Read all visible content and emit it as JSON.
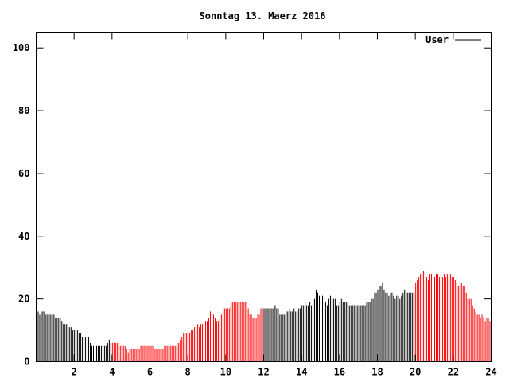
{
  "chart_data": {
    "type": "bar",
    "title": "Sonntag 13. Maerz 2016",
    "xlabel": "",
    "ylabel": "",
    "xlim": [
      0,
      24
    ],
    "ylim": [
      0,
      105
    ],
    "x_ticks": [
      2,
      4,
      6,
      8,
      10,
      12,
      14,
      16,
      18,
      20,
      22,
      24
    ],
    "y_ticks": [
      0,
      20,
      40,
      60,
      80,
      100
    ],
    "grid": false,
    "legend": {
      "position": "top-right",
      "entries": [
        {
          "name": "User",
          "color": "#000000"
        }
      ]
    },
    "samples_per_hour": 12,
    "segment_colors": [
      {
        "from": 0,
        "to": 4,
        "color": "#000000"
      },
      {
        "from": 4,
        "to": 12,
        "color": "#ff0000"
      },
      {
        "from": 12,
        "to": 20,
        "color": "#000000"
      },
      {
        "from": 20,
        "to": 24,
        "color": "#ff0000"
      }
    ],
    "series": [
      {
        "name": "User",
        "values": [
          16,
          16,
          15,
          16,
          16,
          16,
          15,
          15,
          15,
          15,
          15,
          15,
          14,
          14,
          14,
          14,
          13,
          12,
          12,
          12,
          11,
          11,
          11,
          10,
          10,
          10,
          10,
          9,
          9,
          8,
          8,
          8,
          8,
          8,
          6,
          5,
          5,
          5,
          5,
          5,
          5,
          5,
          5,
          5,
          5,
          6,
          7,
          6,
          6,
          6,
          6,
          6,
          6,
          5,
          5,
          5,
          5,
          4,
          3,
          4,
          4,
          4,
          4,
          4,
          4,
          4,
          5,
          5,
          5,
          5,
          5,
          5,
          5,
          5,
          5,
          4,
          4,
          4,
          4,
          4,
          4,
          5,
          5,
          5,
          5,
          5,
          5,
          5,
          5,
          6,
          6,
          7,
          8,
          9,
          9,
          9,
          9,
          9,
          10,
          10,
          11,
          11,
          12,
          11,
          12,
          12,
          13,
          13,
          13,
          14,
          16,
          16,
          15,
          14,
          13,
          13,
          14,
          15,
          16,
          17,
          17,
          17,
          17,
          18,
          19,
          19,
          19,
          19,
          19,
          19,
          19,
          19,
          19,
          19,
          17,
          15,
          15,
          14,
          14,
          14,
          15,
          15,
          17,
          17,
          17,
          17,
          17,
          17,
          17,
          17,
          17,
          18,
          17,
          17,
          15,
          15,
          15,
          15,
          16,
          16,
          17,
          16,
          16,
          17,
          16,
          16,
          17,
          17,
          18,
          18,
          19,
          18,
          18,
          19,
          18,
          20,
          20,
          23,
          22,
          21,
          21,
          21,
          21,
          19,
          18,
          20,
          21,
          21,
          20,
          20,
          18,
          18,
          19,
          20,
          19,
          19,
          19,
          19,
          18,
          18,
          18,
          18,
          18,
          18,
          18,
          18,
          18,
          18,
          18,
          19,
          19,
          19,
          20,
          20,
          22,
          22,
          23,
          24,
          24,
          25,
          23,
          22,
          22,
          21,
          22,
          22,
          21,
          20,
          21,
          21,
          20,
          21,
          22,
          23,
          22,
          22,
          22,
          22,
          22,
          22,
          25,
          26,
          27,
          28,
          29,
          29,
          27,
          27,
          26,
          28,
          28,
          28,
          27,
          28,
          28,
          27,
          28,
          27,
          28,
          27,
          28,
          27,
          28,
          27,
          27,
          26,
          25,
          24,
          24,
          25,
          24,
          24,
          22,
          20,
          20,
          20,
          18,
          17,
          16,
          15,
          15,
          14,
          15,
          14,
          13,
          14,
          14,
          13
        ]
      }
    ]
  }
}
